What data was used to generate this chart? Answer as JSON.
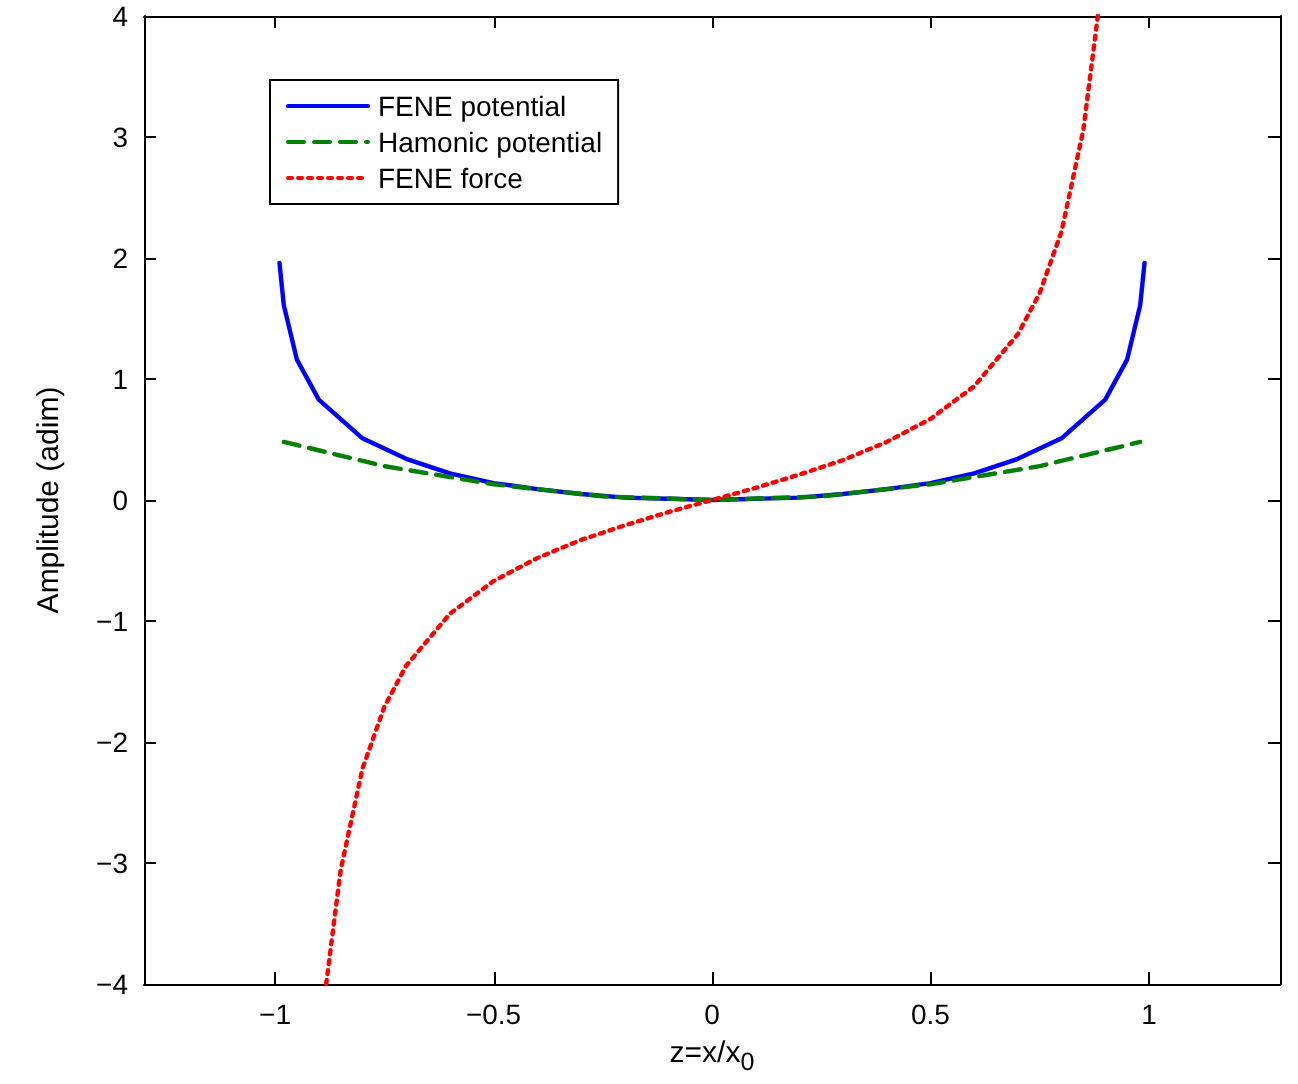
{
  "chart_data": {
    "type": "line",
    "xlabel": "z=x/x$_{0}$",
    "ylabel": "Amplitude (adim)",
    "xlim": [
      -1.3,
      1.3
    ],
    "xticks": [
      -1,
      -0.5,
      0,
      0.5,
      1
    ],
    "ylim": [
      -4,
      4
    ],
    "yticks": [
      -4,
      -3,
      -2,
      -1,
      0,
      1,
      2,
      3,
      4
    ],
    "grid": false,
    "legend": "top left",
    "marker": "none",
    "series": [
      {
        "name": "FENE potential",
        "color": "#0000ff",
        "line_style": "solid",
        "x": [
          -0.99,
          -0.98,
          -0.95,
          -0.9,
          -0.8,
          -0.7,
          -0.6,
          -0.5,
          -0.4,
          -0.3,
          -0.2,
          -0.1,
          0,
          0.1,
          0.2,
          0.3,
          0.4,
          0.5,
          0.6,
          0.7,
          0.8,
          0.9,
          0.95,
          0.98,
          0.99
        ],
        "values": [
          1.96,
          1.61,
          1.16,
          0.83,
          0.51,
          0.34,
          0.22,
          0.14,
          0.09,
          0.05,
          0.02,
          0.01,
          0,
          0.01,
          0.02,
          0.05,
          0.09,
          0.14,
          0.22,
          0.34,
          0.51,
          0.83,
          1.16,
          1.61,
          1.96
        ]
      },
      {
        "name": "Hamonic potential",
        "color": "#007f00",
        "line_style": "dashed",
        "x": [
          -0.98,
          -0.75,
          -0.5,
          -0.25,
          0,
          0.25,
          0.5,
          0.75,
          0.98
        ],
        "values": [
          0.48,
          0.28,
          0.13,
          0.03,
          0,
          0.03,
          0.13,
          0.28,
          0.48
        ]
      },
      {
        "name": "FENE force",
        "color": "#ff0000",
        "line_style": "dotted",
        "x": [
          -0.883,
          -0.85,
          -0.8,
          -0.75,
          -0.7,
          -0.6,
          -0.5,
          -0.4,
          -0.3,
          -0.2,
          -0.1,
          0,
          0.1,
          0.2,
          0.3,
          0.4,
          0.5,
          0.6,
          0.7,
          0.75,
          0.8,
          0.85,
          0.883
        ],
        "values": [
          -4,
          -3.06,
          -2.22,
          -1.71,
          -1.37,
          -0.94,
          -0.67,
          -0.48,
          -0.33,
          -0.21,
          -0.1,
          0,
          0.1,
          0.21,
          0.33,
          0.48,
          0.67,
          0.94,
          1.37,
          1.71,
          2.22,
          3.06,
          4
        ]
      }
    ]
  }
}
